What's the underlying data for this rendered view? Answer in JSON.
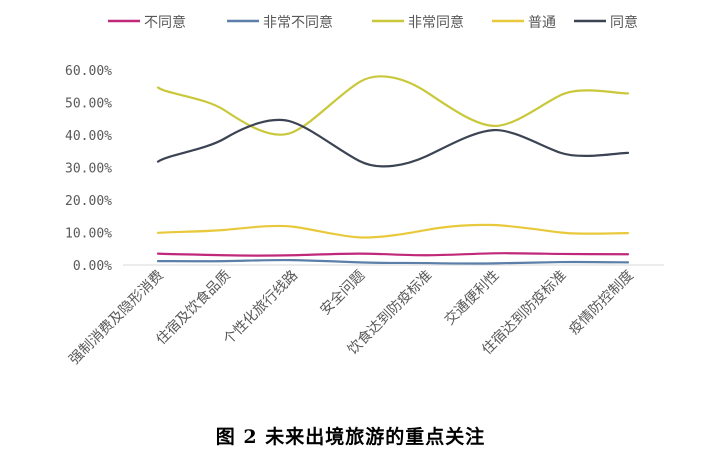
{
  "chart_data": {
    "type": "line",
    "title": "图 2  未来出境旅游的重点关注",
    "xlabel": "",
    "ylabel": "",
    "ylim": [
      0,
      60
    ],
    "yticks": [
      "0.00%",
      "10.00%",
      "20.00%",
      "30.00%",
      "40.00%",
      "50.00%",
      "60.00%"
    ],
    "grid": false,
    "smooth": true,
    "legend_position": "top",
    "categories": [
      "强制消费及隐形消费",
      "住宿及饮食品质",
      "个性化旅行线路",
      "安全问题",
      "饮食达到防疫标准",
      "交通便利性",
      "住宿达到防疫标准",
      "疫情防控制度"
    ],
    "series": [
      {
        "name": "不同意",
        "color": "#c0287a",
        "values": [
          3.5,
          3.0,
          3.0,
          3.5,
          3.0,
          3.6,
          3.4,
          3.3
        ]
      },
      {
        "name": "非常不同意",
        "color": "#5b7fa8",
        "values": [
          1.2,
          1.2,
          1.5,
          0.8,
          0.6,
          0.5,
          0.9,
          0.8
        ]
      },
      {
        "name": "非常同意",
        "color": "#c9c83a",
        "values": [
          54.6,
          47.5,
          40.8,
          56.3,
          53.2,
          42.8,
          52.3,
          52.8
        ]
      },
      {
        "name": "普通",
        "color": "#e9c93c",
        "values": [
          9.9,
          10.8,
          11.8,
          8.5,
          10.8,
          12.3,
          10.0,
          9.8
        ]
      },
      {
        "name": "同意",
        "color": "#3c4454",
        "values": [
          31.8,
          39.0,
          44.0,
          32.0,
          33.5,
          41.5,
          34.5,
          34.5
        ]
      }
    ]
  }
}
